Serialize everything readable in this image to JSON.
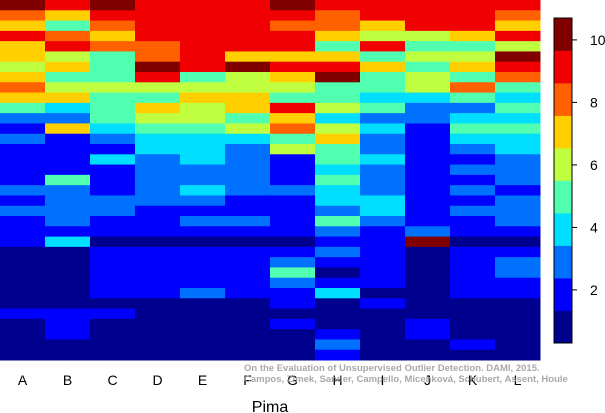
{
  "chart_data": {
    "type": "heatmap",
    "xlabel": "Pima",
    "categories": [
      "A",
      "B",
      "C",
      "D",
      "E",
      "F",
      "G",
      "H",
      "I",
      "J",
      "K",
      "L"
    ],
    "colorbar": {
      "range": [
        0.3,
        10.7
      ],
      "ticks": [
        2,
        4,
        6,
        8,
        10
      ]
    },
    "colormap": [
      "#00008f",
      "#0000ff",
      "#0070ff",
      "#00dfff",
      "#50ffaf",
      "#bfff40",
      "#ffcf00",
      "#ff6000",
      "#f00000",
      "#800000"
    ],
    "row_values": [
      [
        10.0,
        9.5,
        9.8,
        9.5,
        9.5,
        9.5,
        9.8,
        9.0,
        9.5,
        9.5,
        9.5,
        9.5
      ],
      [
        8.0,
        7.0,
        9.5,
        9.0,
        9.0,
        9.0,
        9.0,
        8.0,
        9.0,
        9.0,
        9.0,
        8.0
      ],
      [
        7.0,
        5.0,
        8.0,
        9.0,
        9.0,
        9.0,
        8.0,
        8.0,
        7.0,
        9.0,
        9.0,
        7.0
      ],
      [
        9.0,
        8.0,
        7.0,
        9.0,
        9.0,
        9.0,
        9.0,
        7.0,
        6.0,
        6.0,
        7.0,
        9.0
      ],
      [
        7.0,
        9.0,
        8.0,
        8.0,
        9.0,
        9.0,
        9.0,
        5.0,
        9.0,
        5.0,
        5.0,
        6.0
      ],
      [
        7.0,
        6.0,
        5.0,
        8.0,
        9.0,
        7.0,
        7.0,
        7.0,
        5.0,
        6.0,
        6.0,
        10.0
      ],
      [
        6.0,
        7.0,
        5.0,
        10.0,
        9.0,
        10.0,
        9.0,
        9.0,
        7.0,
        5.0,
        7.0,
        9.0
      ],
      [
        7.0,
        5.0,
        5.0,
        9.0,
        5.0,
        6.0,
        7.0,
        10.0,
        5.0,
        6.0,
        5.0,
        8.0
      ],
      [
        8.0,
        6.0,
        6.0,
        6.0,
        6.0,
        6.0,
        6.0,
        5.0,
        5.0,
        6.0,
        8.0,
        5.0
      ],
      [
        7.0,
        7.0,
        5.0,
        5.0,
        7.0,
        7.0,
        5.0,
        5.0,
        4.0,
        4.0,
        5.0,
        4.0
      ],
      [
        5.0,
        4.0,
        5.0,
        7.0,
        6.0,
        7.0,
        9.0,
        6.0,
        5.0,
        3.0,
        3.0,
        5.0
      ],
      [
        3.0,
        3.0,
        5.0,
        6.0,
        6.0,
        5.0,
        7.0,
        4.0,
        3.0,
        3.0,
        4.0,
        4.0
      ],
      [
        2.0,
        7.0,
        4.0,
        5.0,
        5.0,
        6.0,
        8.0,
        6.0,
        4.0,
        2.0,
        5.0,
        5.0
      ],
      [
        3.0,
        2.0,
        3.0,
        4.0,
        4.0,
        4.0,
        5.0,
        7.0,
        3.0,
        2.0,
        4.0,
        4.0
      ],
      [
        2.0,
        2.0,
        2.0,
        4.0,
        4.0,
        3.0,
        6.0,
        5.0,
        3.0,
        2.0,
        3.0,
        4.0
      ],
      [
        2.0,
        2.0,
        4.0,
        3.0,
        4.0,
        3.0,
        2.0,
        5.0,
        4.0,
        2.0,
        2.0,
        3.0
      ],
      [
        2.0,
        2.0,
        2.0,
        3.0,
        3.0,
        3.0,
        2.0,
        4.0,
        3.0,
        2.0,
        3.0,
        3.0
      ],
      [
        2.0,
        5.0,
        2.0,
        3.0,
        3.0,
        3.0,
        2.0,
        5.0,
        3.0,
        2.0,
        2.0,
        3.0
      ],
      [
        3.0,
        3.0,
        2.0,
        3.0,
        4.0,
        3.0,
        3.0,
        4.0,
        3.0,
        2.0,
        3.0,
        2.0
      ],
      [
        2.0,
        3.0,
        3.0,
        3.0,
        3.0,
        2.0,
        2.0,
        4.0,
        4.0,
        2.0,
        2.0,
        3.0
      ],
      [
        3.0,
        3.0,
        3.0,
        2.0,
        2.0,
        2.0,
        2.0,
        3.0,
        4.0,
        2.0,
        3.0,
        3.0
      ],
      [
        2.0,
        3.0,
        2.0,
        2.0,
        3.0,
        3.0,
        2.0,
        5.0,
        3.0,
        2.0,
        2.0,
        3.0
      ],
      [
        2.0,
        2.0,
        2.0,
        2.0,
        2.0,
        2.0,
        2.0,
        3.0,
        2.0,
        3.0,
        2.0,
        2.0
      ],
      [
        2.0,
        4.0,
        1.0,
        1.0,
        1.0,
        1.0,
        1.0,
        2.0,
        2.0,
        10.0,
        1.0,
        1.0
      ],
      [
        1.0,
        1.0,
        2.0,
        2.0,
        2.0,
        2.0,
        2.0,
        3.0,
        2.0,
        1.0,
        2.0,
        2.0
      ],
      [
        1.0,
        1.0,
        2.0,
        2.0,
        2.0,
        2.0,
        3.0,
        2.0,
        2.0,
        1.0,
        2.0,
        3.0
      ],
      [
        1.0,
        1.0,
        2.0,
        2.0,
        2.0,
        2.0,
        5.0,
        1.0,
        2.0,
        1.0,
        2.0,
        3.0
      ],
      [
        1.0,
        1.0,
        2.0,
        2.0,
        2.0,
        2.0,
        3.0,
        2.0,
        2.0,
        1.0,
        2.0,
        2.0
      ],
      [
        1.0,
        1.0,
        2.0,
        2.0,
        3.0,
        2.0,
        2.0,
        4.0,
        1.0,
        1.0,
        2.0,
        2.0
      ],
      [
        1.0,
        1.0,
        1.0,
        1.0,
        1.0,
        1.0,
        2.0,
        1.0,
        2.0,
        1.0,
        1.0,
        1.0
      ],
      [
        2.0,
        2.0,
        2.0,
        1.0,
        1.0,
        1.0,
        1.0,
        1.0,
        1.0,
        1.0,
        1.0,
        1.0
      ],
      [
        1.0,
        2.0,
        1.0,
        1.0,
        1.0,
        1.0,
        2.0,
        1.0,
        1.0,
        2.0,
        1.0,
        1.0
      ],
      [
        1.0,
        2.0,
        1.0,
        1.0,
        1.0,
        1.0,
        1.0,
        2.0,
        1.0,
        2.0,
        1.0,
        1.0
      ],
      [
        1.0,
        1.0,
        1.0,
        1.0,
        1.0,
        1.0,
        1.0,
        3.0,
        1.0,
        1.0,
        2.0,
        1.0
      ],
      [
        1.0,
        1.0,
        1.0,
        1.0,
        1.0,
        1.0,
        1.0,
        2.0,
        1.0,
        1.0,
        1.0,
        1.0
      ]
    ]
  },
  "credit": {
    "line1": "On the Evaluation of Unsupervised Outlier Detection. DAMI, 2015.",
    "line2": "Campos, Zimek, Sander, Campello, Micenková, Schubert, Assent, Houle"
  }
}
